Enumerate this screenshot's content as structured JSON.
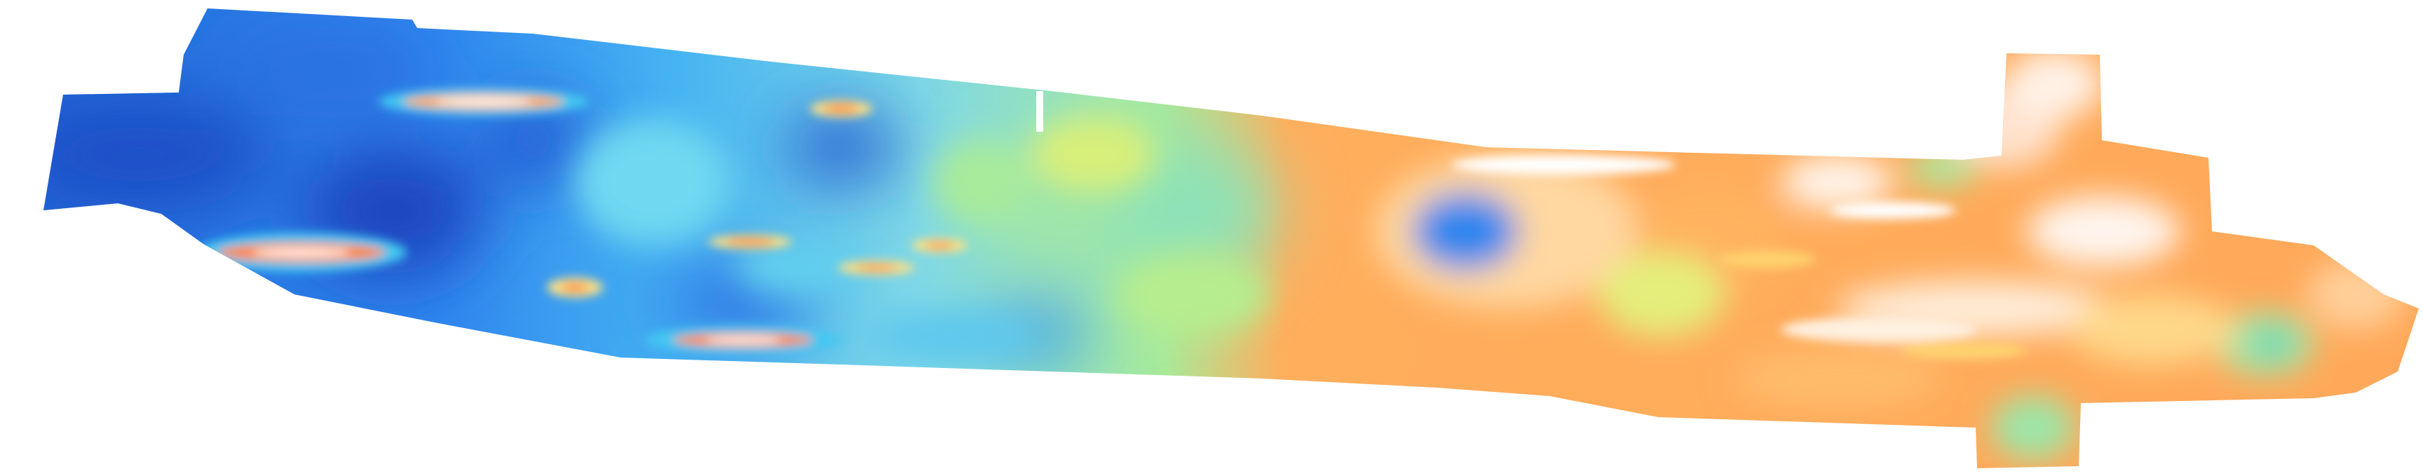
{
  "map": {
    "type": "bathymetry-mosaic",
    "background_color": "#ffffff",
    "colormap": [
      "#1f4fc8",
      "#2f86ee",
      "#42c8f2",
      "#8fe3c0",
      "#e8f070",
      "#ffa955",
      "#ff7a3d",
      "#ffffff"
    ]
  }
}
